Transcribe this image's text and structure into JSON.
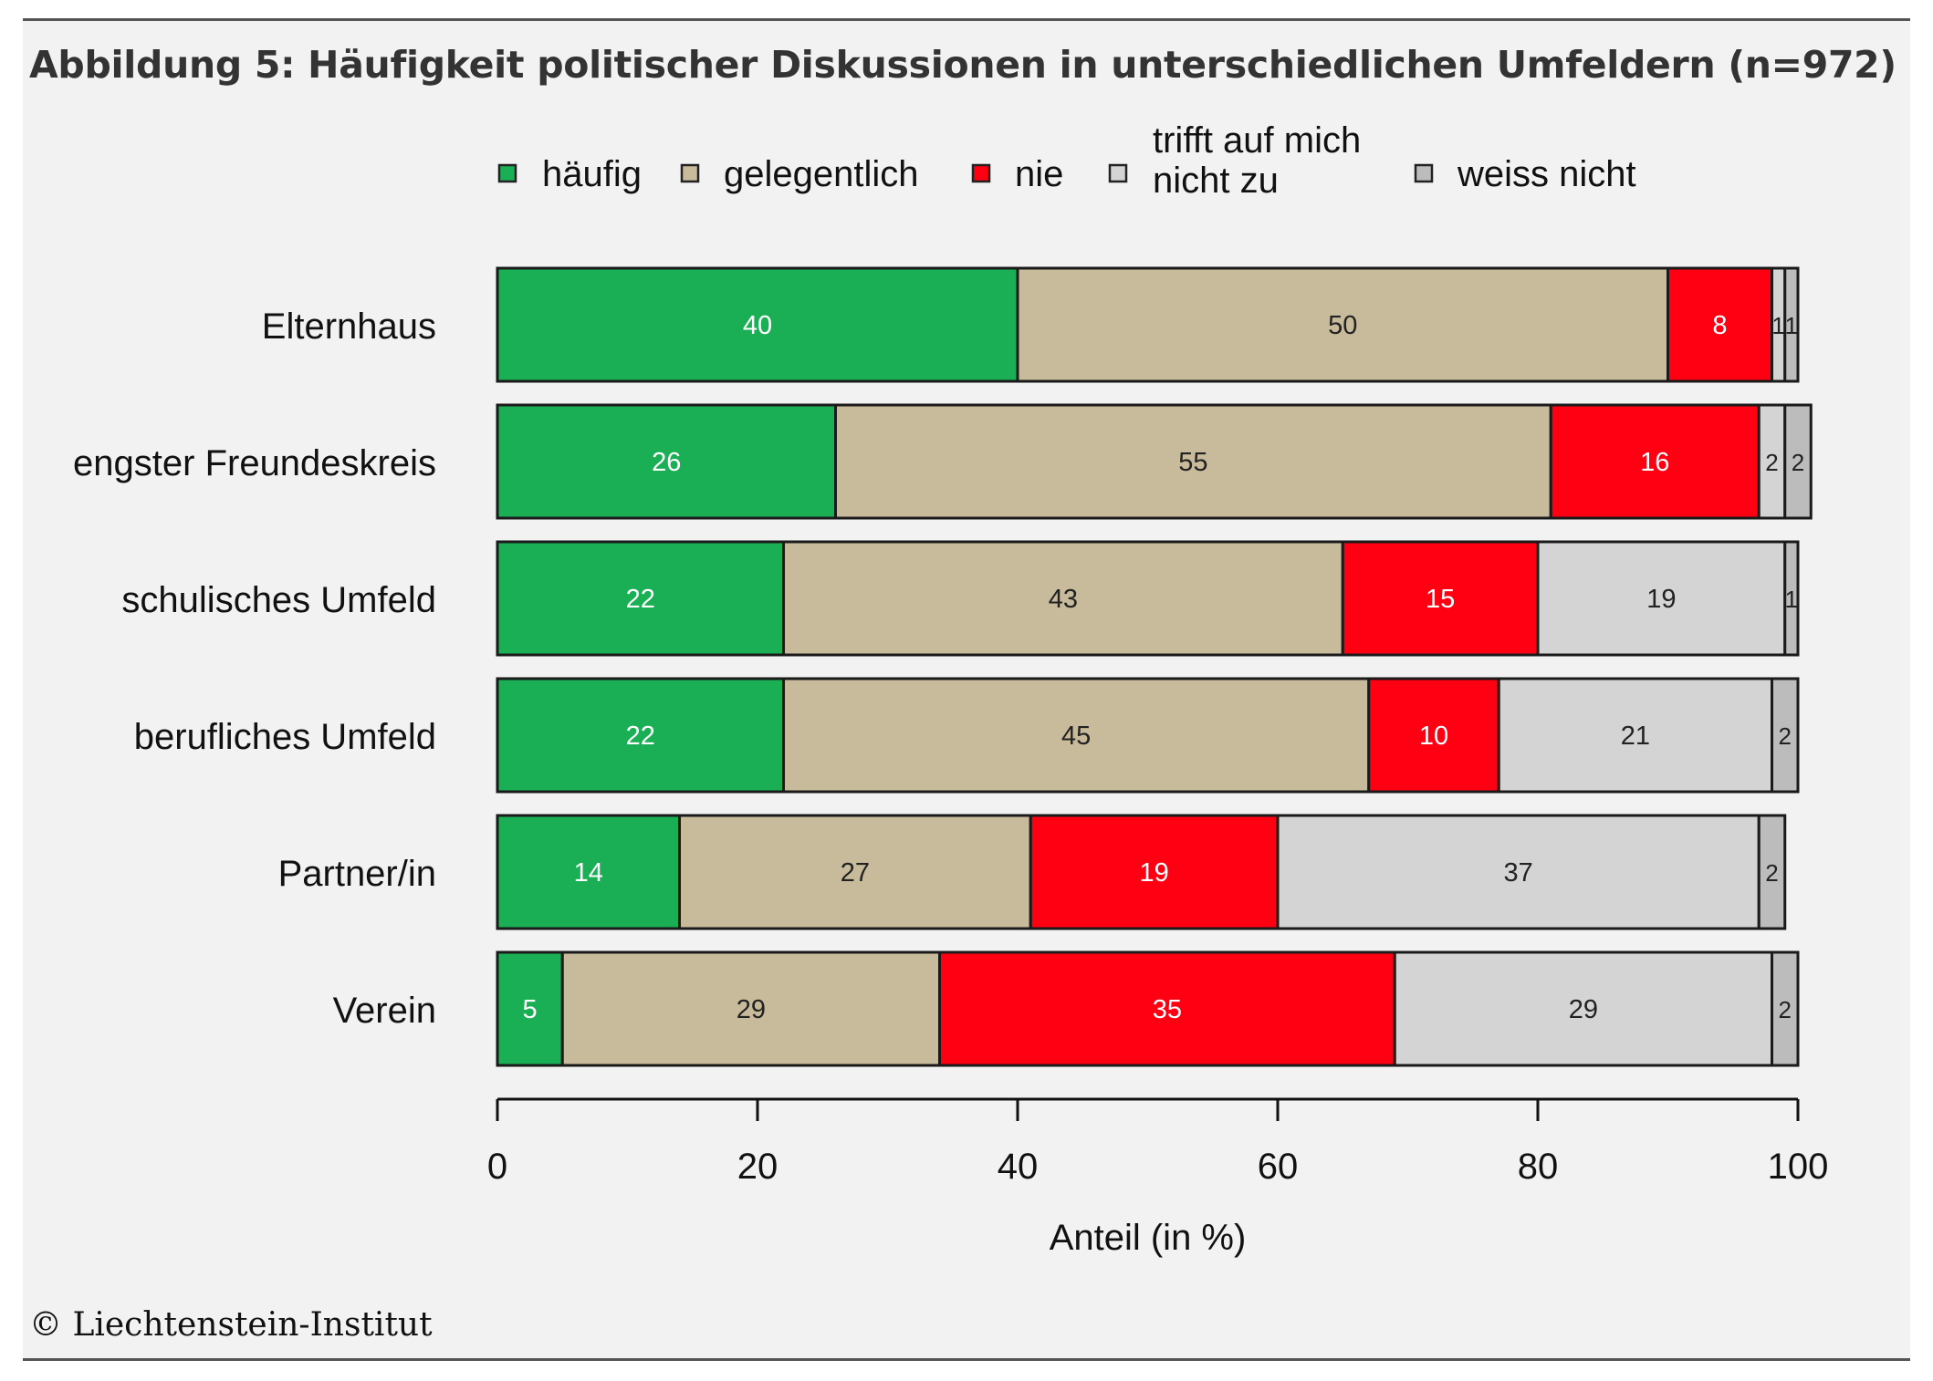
{
  "chart_data": {
    "type": "bar",
    "orientation": "horizontal",
    "stacked": true,
    "title": "Abbildung 5: Häufigkeit politischer Diskussionen in unterschiedlichen Umfeldern (n=972)",
    "xlabel": "Anteil (in %)",
    "ylabel": "",
    "xlim": [
      0,
      100
    ],
    "xticks": [
      0,
      20,
      40,
      60,
      80,
      100
    ],
    "xtick_labels": [
      "0",
      "20",
      "40",
      "60",
      "80",
      "100"
    ],
    "grid": false,
    "legend_position": "top",
    "categories": [
      "Elternhaus",
      "engster Freundeskreis",
      "schulisches Umfeld",
      "berufliches Umfeld",
      "Partner/in",
      "Verein"
    ],
    "series": [
      {
        "name": "häufig",
        "color": "#1aaf54",
        "label_color": "#ffffff",
        "values": [
          40,
          26,
          22,
          22,
          14,
          5
        ]
      },
      {
        "name": "gelegentlich",
        "color": "#c8bb9b",
        "label_color": "#222222",
        "values": [
          50,
          55,
          43,
          45,
          27,
          29
        ]
      },
      {
        "name": "nie",
        "color": "#ff0012",
        "label_color": "#ffffff",
        "values": [
          8,
          16,
          15,
          10,
          19,
          35
        ]
      },
      {
        "name": "trifft auf mich nicht zu",
        "color": "#d4d4d4",
        "label_color": "#222222",
        "values": [
          1,
          2,
          19,
          21,
          37,
          29
        ]
      },
      {
        "name": "weiss nicht",
        "color": "#bcbcbc",
        "label_color": "#222222",
        "values": [
          1,
          2,
          1,
          2,
          2,
          2
        ]
      }
    ]
  },
  "legend": {
    "items": [
      "häufig",
      "gelegentlich",
      "nie",
      "trifft auf mich nicht zu",
      "weiss nicht"
    ],
    "wrapped_item_lines": [
      "trifft auf mich",
      "nicht zu"
    ]
  },
  "footer": {
    "copyright": "© Liechtenstein-Institut"
  }
}
